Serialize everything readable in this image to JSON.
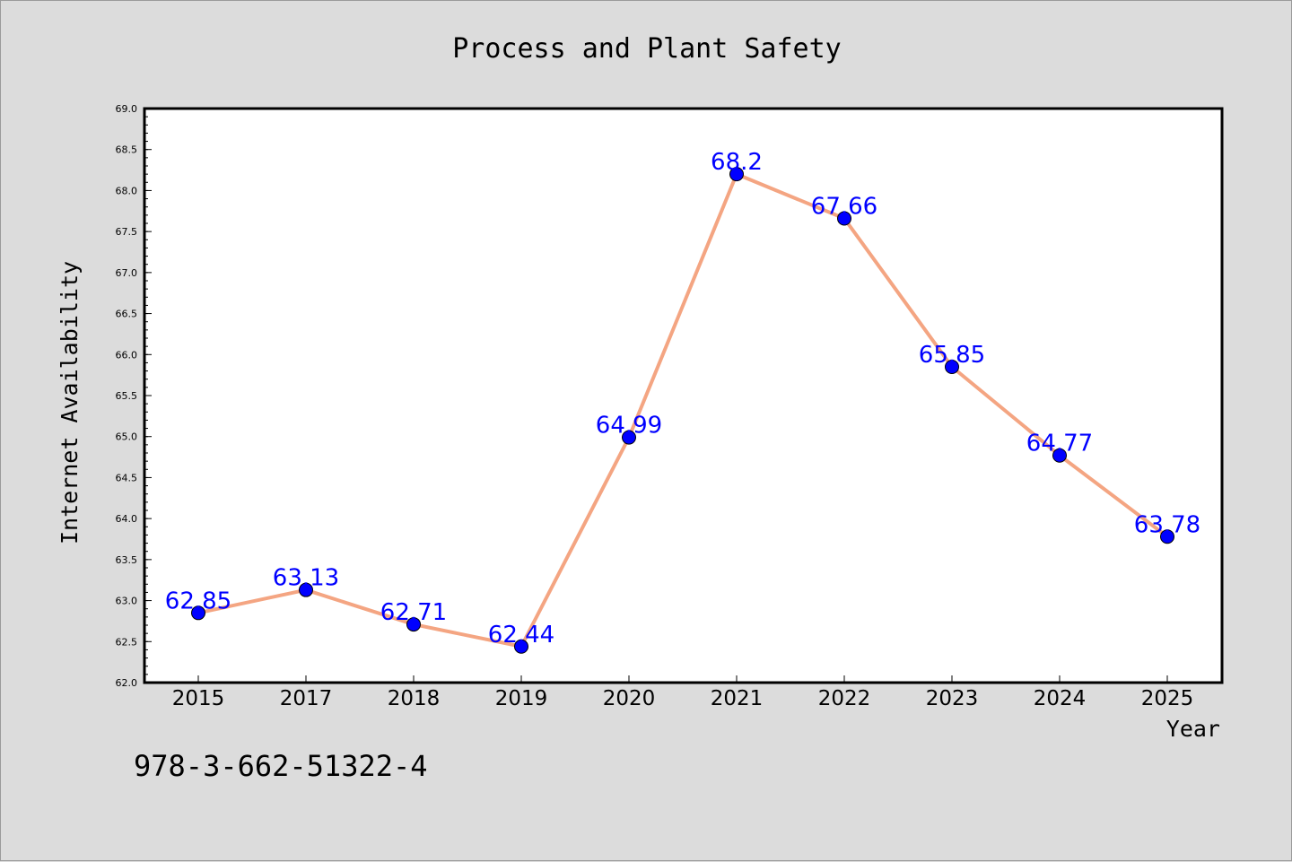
{
  "chart_data": {
    "type": "line",
    "title": "Process and Plant Safety",
    "xlabel": "Year",
    "ylabel": "Internet Availability",
    "categories": [
      "2015",
      "2017",
      "2018",
      "2019",
      "2020",
      "2021",
      "2022",
      "2023",
      "2024",
      "2025"
    ],
    "series": [
      {
        "values": [
          62.85,
          63.13,
          62.71,
          62.44,
          64.99,
          68.2,
          67.66,
          65.85,
          64.77,
          63.78
        ],
        "data_labels": [
          "62.85",
          "63.13",
          "62.71",
          "62.44",
          "64.99",
          "68.2",
          "67.66",
          "65.85",
          "64.77",
          "63.78"
        ],
        "line_color": "#f4a582",
        "marker_color": "#0000ff",
        "label_color": "#0000ff"
      }
    ],
    "ylim": [
      62.0,
      69.0
    ],
    "yticks": [
      "62.0",
      "62.5",
      "63.0",
      "63.5",
      "64.0",
      "64.5",
      "65.0",
      "65.5",
      "66.0",
      "66.5",
      "67.0",
      "67.5",
      "68.0",
      "68.5",
      "69.0"
    ],
    "grid": false,
    "background": "#ffffff"
  },
  "annotation": {
    "isbn": "978-3-662-51322-4"
  }
}
